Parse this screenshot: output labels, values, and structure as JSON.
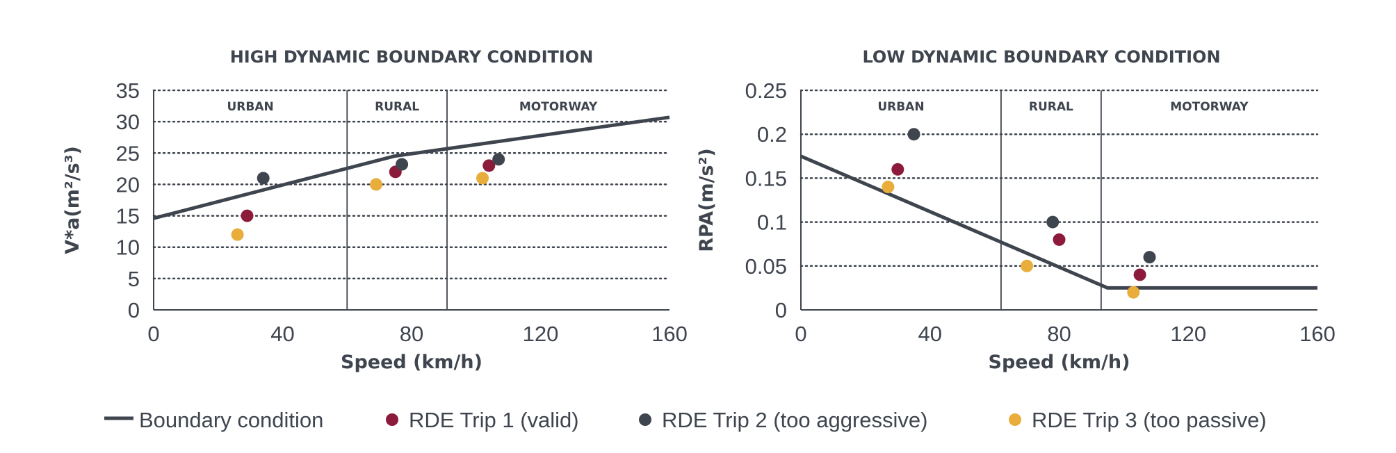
{
  "chart_data": [
    {
      "type": "line+scatter",
      "title": "HIGH DYNAMIC BOUNDARY CONDITION",
      "xlabel": "Speed (km/h)",
      "ylabel": "V*a(m²/s³)",
      "xlim": [
        0,
        160
      ],
      "ylim": [
        0,
        35
      ],
      "xticks": [
        0,
        40,
        80,
        120,
        160
      ],
      "yticks": [
        0,
        5,
        10,
        15,
        20,
        25,
        30,
        35
      ],
      "yticklabels": [
        "0",
        "5",
        "10",
        "15",
        "20",
        "25",
        "30",
        "35"
      ],
      "grid": "horizontal dotted",
      "zones": [
        {
          "label": "URBAN",
          "from": 0,
          "to": 60
        },
        {
          "label": "RURAL",
          "from": 60,
          "to": 91
        },
        {
          "label": "MOTORWAY",
          "from": 91,
          "to": 160
        }
      ],
      "boundary": {
        "x": [
          0,
          74.6,
          160
        ],
        "y": [
          14.6,
          24.5,
          30.7
        ]
      },
      "series": [
        {
          "key": "trip1",
          "x": [
            29,
            75,
            104
          ],
          "y": [
            15,
            22,
            23
          ]
        },
        {
          "key": "trip2",
          "x": [
            34,
            77,
            107
          ],
          "y": [
            21,
            23.2,
            24
          ]
        },
        {
          "key": "trip3",
          "x": [
            26,
            69,
            102
          ],
          "y": [
            12,
            20,
            21
          ]
        }
      ]
    },
    {
      "type": "line+scatter",
      "title": "LOW DYNAMIC BOUNDARY CONDITION",
      "xlabel": "Speed (km/h)",
      "ylabel": "RPA(m/s²)",
      "xlim": [
        0,
        160
      ],
      "ylim": [
        0,
        0.25
      ],
      "xticks": [
        0,
        40,
        80,
        120,
        160
      ],
      "yticks": [
        0,
        0.05,
        0.1,
        0.15,
        0.2,
        0.25
      ],
      "yticklabels": [
        "0",
        "0.05",
        "0.1",
        "0.15",
        "0.2",
        "0.25"
      ],
      "grid": "horizontal dotted",
      "zones": [
        {
          "label": "URBAN",
          "from": 0,
          "to": 62
        },
        {
          "label": "RURAL",
          "from": 62,
          "to": 93
        },
        {
          "label": "MOTORWAY",
          "from": 93,
          "to": 160
        }
      ],
      "boundary": {
        "x": [
          0,
          95,
          160
        ],
        "y": [
          0.175,
          0.025,
          0.025
        ]
      },
      "series": [
        {
          "key": "trip1",
          "x": [
            30,
            80,
            105
          ],
          "y": [
            0.16,
            0.08,
            0.04
          ]
        },
        {
          "key": "trip2",
          "x": [
            35,
            78,
            108
          ],
          "y": [
            0.2,
            0.1,
            0.06
          ]
        },
        {
          "key": "trip3",
          "x": [
            27,
            70,
            103
          ],
          "y": [
            0.14,
            0.05,
            0.02
          ]
        }
      ]
    }
  ],
  "legend": [
    {
      "key": "boundary",
      "label": "Boundary condition",
      "marker": "line"
    },
    {
      "key": "trip1",
      "label": "RDE Trip 1 (valid)",
      "marker": "dot"
    },
    {
      "key": "trip2",
      "label": "RDE Trip 2 (too aggressive)",
      "marker": "dot"
    },
    {
      "key": "trip3",
      "label": "RDE Trip 3 (too passive)",
      "marker": "dot"
    }
  ],
  "colors": {
    "boundary": "#3f454e",
    "trip1": "#8c1a3a",
    "trip2": "#3f454e",
    "trip3": "#e8ad3b",
    "text": "#3f454e",
    "grid": "#3f454e"
  }
}
